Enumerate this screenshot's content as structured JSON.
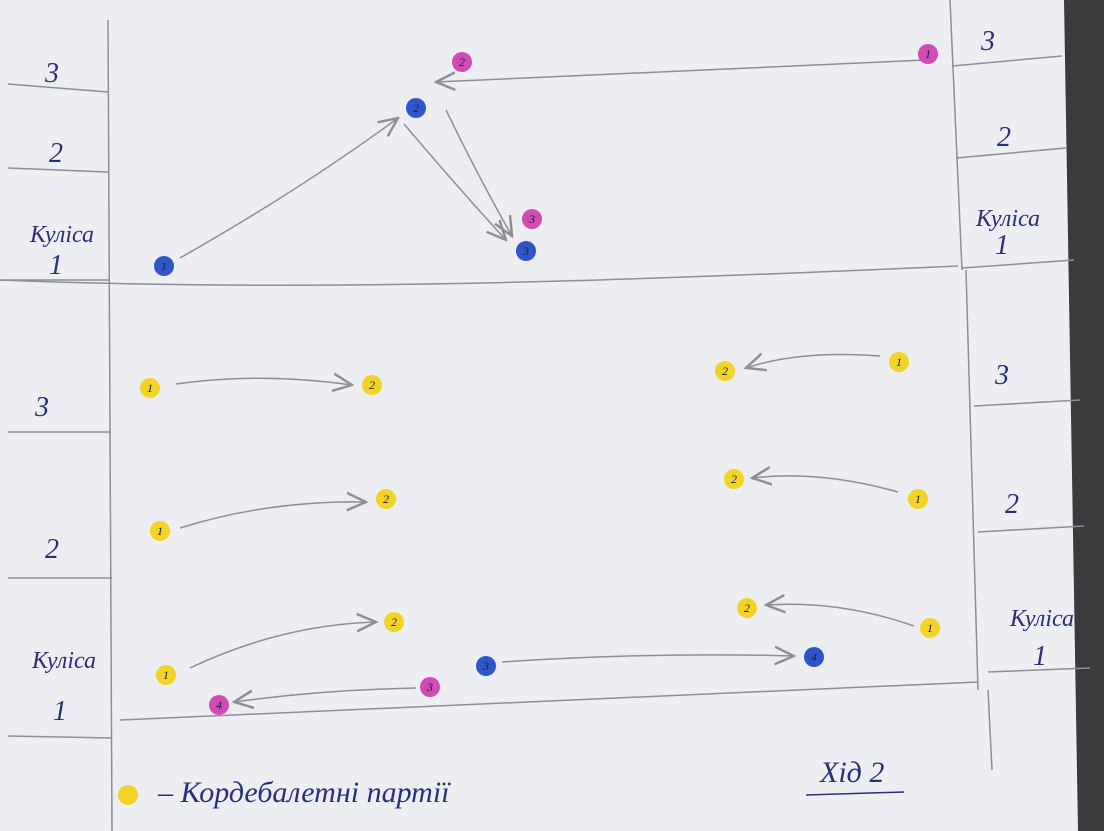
{
  "wings": {
    "top_left": [
      "3",
      "2",
      "Куліса",
      "1"
    ],
    "top_right": [
      "3",
      "2",
      "Куліса",
      "1"
    ],
    "bottom_left": [
      "3",
      "2",
      "Куліса",
      "1"
    ],
    "bottom_right": [
      "3",
      "2",
      "Куліса",
      "1"
    ]
  },
  "dots": [
    {
      "label": "2",
      "color": "#d24bb4"
    },
    {
      "label": "1",
      "color": "#d24bb4"
    },
    {
      "label": "2",
      "color": "#2f55c8"
    },
    {
      "label": "1",
      "color": "#2f55c8"
    },
    {
      "label": "3",
      "color": "#d24bb4"
    },
    {
      "label": "3",
      "color": "#2f55c8"
    },
    {
      "label": "1",
      "color": "#f3d426"
    },
    {
      "label": "2",
      "color": "#f3d426"
    },
    {
      "label": "1",
      "color": "#f3d426"
    },
    {
      "label": "2",
      "color": "#f3d426"
    },
    {
      "label": "1",
      "color": "#f3d426"
    },
    {
      "label": "2",
      "color": "#f3d426"
    },
    {
      "label": "2",
      "color": "#f3d426"
    },
    {
      "label": "1",
      "color": "#f3d426"
    },
    {
      "label": "2",
      "color": "#f3d426"
    },
    {
      "label": "1",
      "color": "#f3d426"
    },
    {
      "label": "2",
      "color": "#f3d426"
    },
    {
      "label": "1",
      "color": "#f3d426"
    },
    {
      "label": "3",
      "color": "#2f55c8"
    },
    {
      "label": "4",
      "color": "#2f55c8"
    },
    {
      "label": "3",
      "color": "#d24bb4"
    },
    {
      "label": "4",
      "color": "#d24bb4"
    }
  ],
  "legend": {
    "color": "#f3d426",
    "text": "– Кордебалетні партії"
  },
  "caption": "Хід 2"
}
